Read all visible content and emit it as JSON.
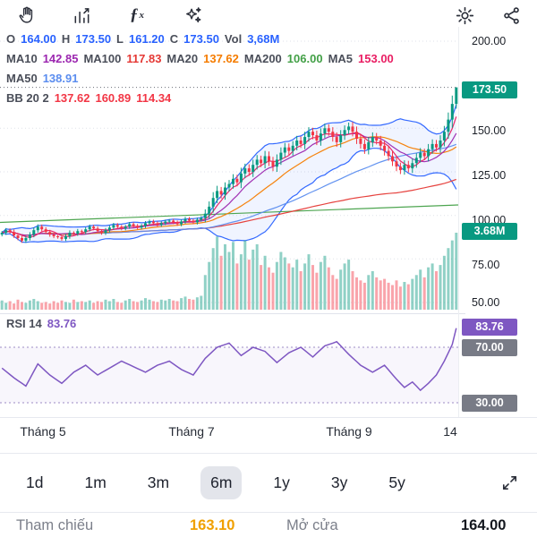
{
  "toolbar": {
    "icons": [
      "pan-hand",
      "indicator-chart",
      "function-fx",
      "magic-wand",
      "settings-gear",
      "share"
    ],
    "fx_label": "ƒ",
    "fx_sub": "x"
  },
  "colors": {
    "ohlc_value": "#2962ff",
    "up": "#089981",
    "down": "#f23645"
  },
  "legend": {
    "ohlc": {
      "o_label": "O",
      "o": "164.00",
      "h_label": "H",
      "h": "173.50",
      "l_label": "L",
      "l": "161.20",
      "c_label": "C",
      "c": "173.50",
      "vol_label": "Vol",
      "vol": "3,68M"
    },
    "ma_line1": [
      {
        "label": "MA10",
        "value": "142.85",
        "color": "#9c27b0"
      },
      {
        "label": "MA100",
        "value": "117.83",
        "color": "#e53935"
      },
      {
        "label": "MA20",
        "value": "137.62",
        "color": "#f57c00"
      },
      {
        "label": "MA200",
        "value": "106.00",
        "color": "#43a047"
      },
      {
        "label": "MA5",
        "value": "153.00",
        "color": "#e91e63"
      }
    ],
    "ma_line2": [
      {
        "label": "MA50",
        "value": "138.91",
        "color": "#5b8def"
      }
    ],
    "bb_label": "BB 20 2",
    "bb_values": [
      "137.62",
      "160.89",
      "114.34"
    ],
    "bb_color": "#f23645",
    "rsi_label": "RSI 14",
    "rsi_value": "83.76",
    "rsi_color": "#7e57c2"
  },
  "price_axis": {
    "labels": [
      "200.00",
      "150.00",
      "125.00",
      "100.00",
      "75.00",
      "50.00"
    ],
    "badges": [
      {
        "text": "173.50",
        "bg": "#089981"
      },
      {
        "text": "3.68M",
        "bg": "#089981"
      }
    ]
  },
  "rsi_axis": {
    "badges": [
      {
        "text": "83.76",
        "bg": "#7e57c2"
      },
      {
        "text": "70.00",
        "bg": "#787b86"
      },
      {
        "text": "30.00",
        "bg": "#787b86"
      }
    ]
  },
  "time_axis": {
    "labels": [
      "Tháng 5",
      "Tháng 7",
      "Tháng 9",
      "14"
    ]
  },
  "ranges": {
    "options": [
      {
        "label": "1d",
        "active": false
      },
      {
        "label": "1m",
        "active": false
      },
      {
        "label": "3m",
        "active": false
      },
      {
        "label": "6m",
        "active": true
      },
      {
        "label": "1y",
        "active": false
      },
      {
        "label": "3y",
        "active": false
      },
      {
        "label": "5y",
        "active": false
      }
    ]
  },
  "quote": {
    "ref_label": "Tham chiếu",
    "ref_value": "163.10",
    "ref_color": "#f0a000",
    "open_label": "Mở cửa",
    "open_value": "164.00"
  },
  "chart_data": {
    "type": "candlestick",
    "panes": [
      "price+volume",
      "rsi"
    ],
    "price_scale": {
      "gridlines": [
        200,
        150,
        125,
        100,
        75,
        50
      ],
      "range_shown": [
        50,
        200
      ]
    },
    "last_candle": {
      "o": 164,
      "h": 173.5,
      "l": 161.2,
      "c": 173.5
    },
    "closes": [
      90,
      91.5,
      90.5,
      88.5,
      87,
      85.5,
      87,
      89,
      91.5,
      93.5,
      92,
      90.5,
      89,
      88,
      87.5,
      86.5,
      88,
      90,
      89.5,
      91,
      90.5,
      92,
      93.5,
      92.5,
      91,
      90,
      91.5,
      93,
      94.5,
      93.5,
      92.5,
      93.5,
      95,
      94,
      93,
      94,
      95.5,
      96.5,
      95.5,
      94.5,
      95.5,
      96.5,
      97,
      96,
      95,
      96.5,
      98,
      97,
      96,
      97.5,
      98.5,
      101,
      105,
      110,
      114,
      112,
      116,
      118,
      121,
      119,
      124,
      127,
      125,
      129,
      132,
      130,
      134,
      131,
      128,
      132,
      136,
      139,
      137,
      140,
      143,
      141,
      145,
      148,
      146,
      143,
      147,
      150,
      148,
      145,
      142,
      146,
      149,
      151,
      148,
      144,
      141,
      138,
      142,
      145,
      143,
      140,
      137,
      134,
      131,
      128,
      126,
      129,
      127,
      130,
      133,
      136,
      134,
      138,
      141,
      139,
      143,
      148,
      155,
      164,
      173.5
    ],
    "volumes": [
      0.12,
      0.09,
      0.11,
      0.08,
      0.13,
      0.1,
      0.09,
      0.12,
      0.14,
      0.11,
      0.09,
      0.1,
      0.08,
      0.11,
      0.09,
      0.12,
      0.1,
      0.09,
      0.13,
      0.1,
      0.11,
      0.1,
      0.12,
      0.09,
      0.11,
      0.1,
      0.13,
      0.11,
      0.14,
      0.1,
      0.09,
      0.12,
      0.14,
      0.11,
      0.1,
      0.12,
      0.15,
      0.13,
      0.11,
      0.1,
      0.13,
      0.12,
      0.14,
      0.12,
      0.11,
      0.15,
      0.17,
      0.14,
      0.13,
      0.16,
      0.18,
      0.45,
      0.62,
      0.8,
      0.95,
      0.7,
      0.85,
      0.75,
      0.88,
      0.6,
      0.72,
      0.9,
      0.65,
      0.78,
      0.85,
      0.58,
      0.7,
      0.55,
      0.48,
      0.62,
      0.75,
      0.68,
      0.6,
      0.55,
      0.65,
      0.5,
      0.6,
      0.72,
      0.58,
      0.48,
      0.62,
      0.7,
      0.55,
      0.45,
      0.4,
      0.52,
      0.6,
      0.65,
      0.5,
      0.42,
      0.38,
      0.35,
      0.45,
      0.5,
      0.42,
      0.38,
      0.4,
      0.35,
      0.32,
      0.38,
      0.3,
      0.36,
      0.33,
      0.4,
      0.45,
      0.52,
      0.42,
      0.55,
      0.6,
      0.5,
      0.58,
      0.7,
      0.8,
      0.9,
      1.0
    ],
    "rsi_anchors": [
      [
        0,
        55
      ],
      [
        3,
        48
      ],
      [
        6,
        42
      ],
      [
        9,
        58
      ],
      [
        12,
        50
      ],
      [
        15,
        44
      ],
      [
        18,
        52
      ],
      [
        21,
        57
      ],
      [
        24,
        50
      ],
      [
        27,
        55
      ],
      [
        30,
        60
      ],
      [
        33,
        56
      ],
      [
        36,
        52
      ],
      [
        39,
        57
      ],
      [
        42,
        60
      ],
      [
        45,
        54
      ],
      [
        48,
        50
      ],
      [
        51,
        62
      ],
      [
        54,
        70
      ],
      [
        57,
        73
      ],
      [
        60,
        64
      ],
      [
        63,
        70
      ],
      [
        66,
        67
      ],
      [
        69,
        59
      ],
      [
        72,
        66
      ],
      [
        75,
        70
      ],
      [
        78,
        63
      ],
      [
        81,
        71
      ],
      [
        84,
        74
      ],
      [
        87,
        65
      ],
      [
        90,
        57
      ],
      [
        93,
        52
      ],
      [
        96,
        57
      ],
      [
        99,
        47
      ],
      [
        101,
        41
      ],
      [
        103,
        45
      ],
      [
        105,
        39
      ],
      [
        107,
        44
      ],
      [
        109,
        50
      ],
      [
        111,
        60
      ],
      [
        113,
        72
      ],
      [
        114,
        83.76
      ]
    ],
    "rsi_guides": [
      70,
      30
    ],
    "ma200_line": {
      "from": 96,
      "to": 106
    },
    "colors": {
      "up": "#089981",
      "down": "#f23645",
      "bb": "#2962ff",
      "ma5": "#e91e63",
      "ma10": "#9c27b0",
      "ma20": "#f57c00",
      "ma50": "#5b8def",
      "ma100": "#e53935",
      "ma200": "#43a047",
      "rsi": "#7e57c2"
    }
  }
}
